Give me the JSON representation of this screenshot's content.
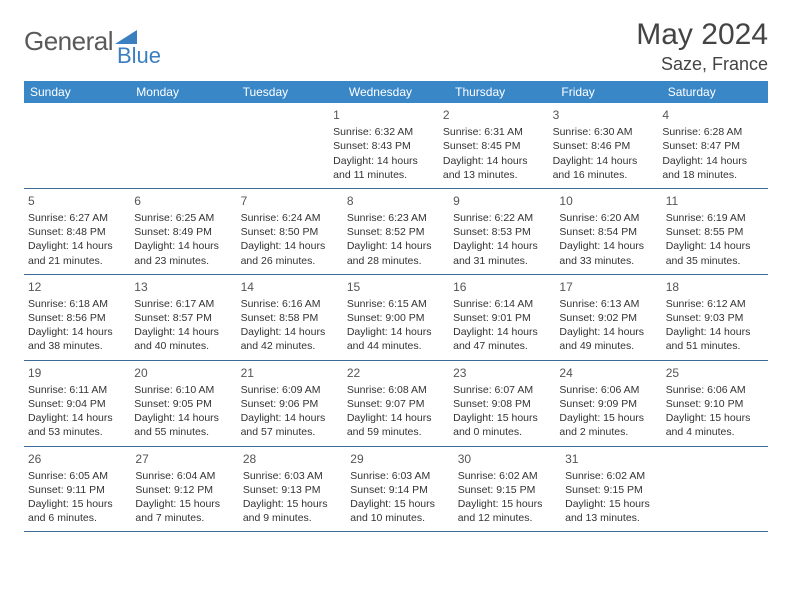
{
  "logo": {
    "text1": "General",
    "text2": "Blue"
  },
  "title": "May 2024",
  "location": "Saze, France",
  "colors": {
    "header_bg": "#3a87c8",
    "header_text": "#ffffff",
    "row_border": "#3a6a9a",
    "body_text": "#333333",
    "daynum_text": "#555555",
    "logo_gray": "#5a5a5a",
    "logo_blue": "#3a7fbf"
  },
  "weekdays": [
    "Sunday",
    "Monday",
    "Tuesday",
    "Wednesday",
    "Thursday",
    "Friday",
    "Saturday"
  ],
  "weeks": [
    [
      null,
      null,
      null,
      {
        "d": "1",
        "sr": "6:32 AM",
        "ss": "8:43 PM",
        "dl": "14 hours and 11 minutes."
      },
      {
        "d": "2",
        "sr": "6:31 AM",
        "ss": "8:45 PM",
        "dl": "14 hours and 13 minutes."
      },
      {
        "d": "3",
        "sr": "6:30 AM",
        "ss": "8:46 PM",
        "dl": "14 hours and 16 minutes."
      },
      {
        "d": "4",
        "sr": "6:28 AM",
        "ss": "8:47 PM",
        "dl": "14 hours and 18 minutes."
      }
    ],
    [
      {
        "d": "5",
        "sr": "6:27 AM",
        "ss": "8:48 PM",
        "dl": "14 hours and 21 minutes."
      },
      {
        "d": "6",
        "sr": "6:25 AM",
        "ss": "8:49 PM",
        "dl": "14 hours and 23 minutes."
      },
      {
        "d": "7",
        "sr": "6:24 AM",
        "ss": "8:50 PM",
        "dl": "14 hours and 26 minutes."
      },
      {
        "d": "8",
        "sr": "6:23 AM",
        "ss": "8:52 PM",
        "dl": "14 hours and 28 minutes."
      },
      {
        "d": "9",
        "sr": "6:22 AM",
        "ss": "8:53 PM",
        "dl": "14 hours and 31 minutes."
      },
      {
        "d": "10",
        "sr": "6:20 AM",
        "ss": "8:54 PM",
        "dl": "14 hours and 33 minutes."
      },
      {
        "d": "11",
        "sr": "6:19 AM",
        "ss": "8:55 PM",
        "dl": "14 hours and 35 minutes."
      }
    ],
    [
      {
        "d": "12",
        "sr": "6:18 AM",
        "ss": "8:56 PM",
        "dl": "14 hours and 38 minutes."
      },
      {
        "d": "13",
        "sr": "6:17 AM",
        "ss": "8:57 PM",
        "dl": "14 hours and 40 minutes."
      },
      {
        "d": "14",
        "sr": "6:16 AM",
        "ss": "8:58 PM",
        "dl": "14 hours and 42 minutes."
      },
      {
        "d": "15",
        "sr": "6:15 AM",
        "ss": "9:00 PM",
        "dl": "14 hours and 44 minutes."
      },
      {
        "d": "16",
        "sr": "6:14 AM",
        "ss": "9:01 PM",
        "dl": "14 hours and 47 minutes."
      },
      {
        "d": "17",
        "sr": "6:13 AM",
        "ss": "9:02 PM",
        "dl": "14 hours and 49 minutes."
      },
      {
        "d": "18",
        "sr": "6:12 AM",
        "ss": "9:03 PM",
        "dl": "14 hours and 51 minutes."
      }
    ],
    [
      {
        "d": "19",
        "sr": "6:11 AM",
        "ss": "9:04 PM",
        "dl": "14 hours and 53 minutes."
      },
      {
        "d": "20",
        "sr": "6:10 AM",
        "ss": "9:05 PM",
        "dl": "14 hours and 55 minutes."
      },
      {
        "d": "21",
        "sr": "6:09 AM",
        "ss": "9:06 PM",
        "dl": "14 hours and 57 minutes."
      },
      {
        "d": "22",
        "sr": "6:08 AM",
        "ss": "9:07 PM",
        "dl": "14 hours and 59 minutes."
      },
      {
        "d": "23",
        "sr": "6:07 AM",
        "ss": "9:08 PM",
        "dl": "15 hours and 0 minutes."
      },
      {
        "d": "24",
        "sr": "6:06 AM",
        "ss": "9:09 PM",
        "dl": "15 hours and 2 minutes."
      },
      {
        "d": "25",
        "sr": "6:06 AM",
        "ss": "9:10 PM",
        "dl": "15 hours and 4 minutes."
      }
    ],
    [
      {
        "d": "26",
        "sr": "6:05 AM",
        "ss": "9:11 PM",
        "dl": "15 hours and 6 minutes."
      },
      {
        "d": "27",
        "sr": "6:04 AM",
        "ss": "9:12 PM",
        "dl": "15 hours and 7 minutes."
      },
      {
        "d": "28",
        "sr": "6:03 AM",
        "ss": "9:13 PM",
        "dl": "15 hours and 9 minutes."
      },
      {
        "d": "29",
        "sr": "6:03 AM",
        "ss": "9:14 PM",
        "dl": "15 hours and 10 minutes."
      },
      {
        "d": "30",
        "sr": "6:02 AM",
        "ss": "9:15 PM",
        "dl": "15 hours and 12 minutes."
      },
      {
        "d": "31",
        "sr": "6:02 AM",
        "ss": "9:15 PM",
        "dl": "15 hours and 13 minutes."
      },
      null
    ]
  ],
  "labels": {
    "sunrise": "Sunrise: ",
    "sunset": "Sunset: ",
    "daylight": "Daylight: "
  }
}
